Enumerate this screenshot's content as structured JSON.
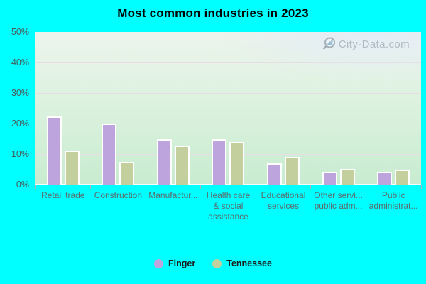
{
  "colors": {
    "background": "#00ffff",
    "finger_bar": "#bda4dc",
    "tennessee_bar": "#c3cf9c",
    "bar_border": "#ffffff",
    "gridline": "#e8dce6",
    "axis_label": "#5c6b6b",
    "ytick_label": "#4a5a5a",
    "tick_mark": "#9fb8b8",
    "watermark_text": "#a9b3bc"
  },
  "watermark": {
    "text": "City-Data.com",
    "icon": "magnifier-bar-chart-icon"
  },
  "chart_data": {
    "type": "bar",
    "title": "Most common industries in 2023",
    "categories": [
      "Retail trade",
      "Construction",
      "Manufactur...",
      "Health care\n& social\nassistance",
      "Educational\nservices",
      "Other servi...\npublic adm...",
      "Public\nadministrat..."
    ],
    "series": [
      {
        "name": "Finger",
        "color": "#bda4dc",
        "values": [
          21.8,
          19.6,
          14.5,
          14.4,
          6.6,
          3.8,
          3.7
        ]
      },
      {
        "name": "Tennessee",
        "color": "#c3cf9c",
        "values": [
          10.8,
          7.0,
          12.3,
          13.5,
          8.5,
          4.7,
          4.4
        ]
      }
    ],
    "ylabel": "",
    "xlabel": "",
    "ylim": [
      0,
      50
    ],
    "yticks": [
      "0%",
      "10%",
      "20%",
      "30%",
      "40%",
      "50%"
    ],
    "grid": "horizontal",
    "legend_position": "bottom"
  }
}
